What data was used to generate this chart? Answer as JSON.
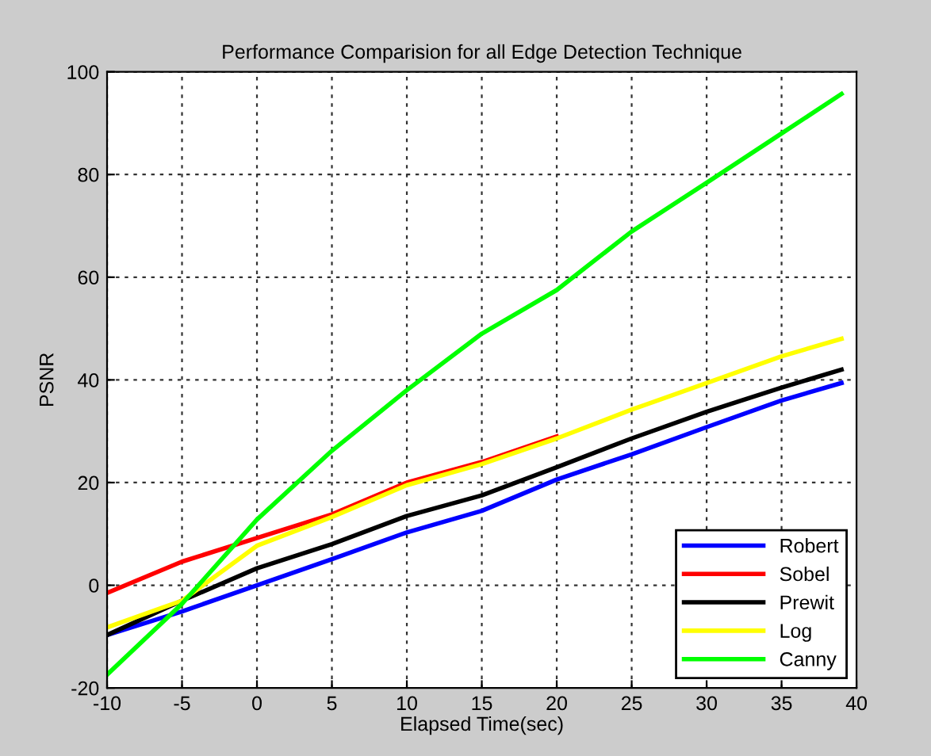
{
  "chart_data": {
    "type": "line",
    "title": "Performance Comparision for all Edge Detection Technique",
    "xlabel": "Elapsed Time(sec)",
    "ylabel": "PSNR",
    "x": [
      -10,
      -5,
      0,
      5,
      10,
      15,
      20,
      25,
      30,
      35,
      39
    ],
    "series": [
      {
        "name": "Robert",
        "color": "#0000ff",
        "values": [
          -9.7,
          -5.1,
          0,
          5.1,
          10.3,
          14.5,
          20.6,
          25.5,
          30.8,
          36,
          39.4
        ]
      },
      {
        "name": "Sobel",
        "color": "#ff0000",
        "values": [
          -1.5,
          4.6,
          9.2,
          13.8,
          20,
          24,
          29,
          null,
          null,
          null,
          null
        ]
      },
      {
        "name": "Prewit",
        "color": "#000000",
        "values": [
          -9.7,
          -3,
          3.3,
          8,
          13.5,
          17.5,
          23,
          28.6,
          33.8,
          38.5,
          42
        ]
      },
      {
        "name": "Log",
        "color": "#ffff00",
        "values": [
          -8.2,
          -3,
          7.7,
          13.3,
          19.5,
          23.6,
          28.6,
          34.2,
          39.4,
          44.6,
          48
        ]
      },
      {
        "name": "Canny",
        "color": "#00ff00",
        "values": [
          -17.4,
          -3.6,
          12.8,
          26.2,
          38,
          49,
          57.5,
          68.9,
          78.4,
          88,
          95.7
        ]
      }
    ],
    "xlim": [
      -10,
      40
    ],
    "ylim": [
      -20,
      100
    ],
    "xticks": [
      -10,
      -5,
      0,
      5,
      10,
      15,
      20,
      25,
      30,
      35,
      40
    ],
    "yticks": [
      -20,
      0,
      20,
      40,
      60,
      80,
      100
    ],
    "grid": true,
    "legend": "bottom right",
    "line_style": "solid",
    "marker": "none"
  }
}
